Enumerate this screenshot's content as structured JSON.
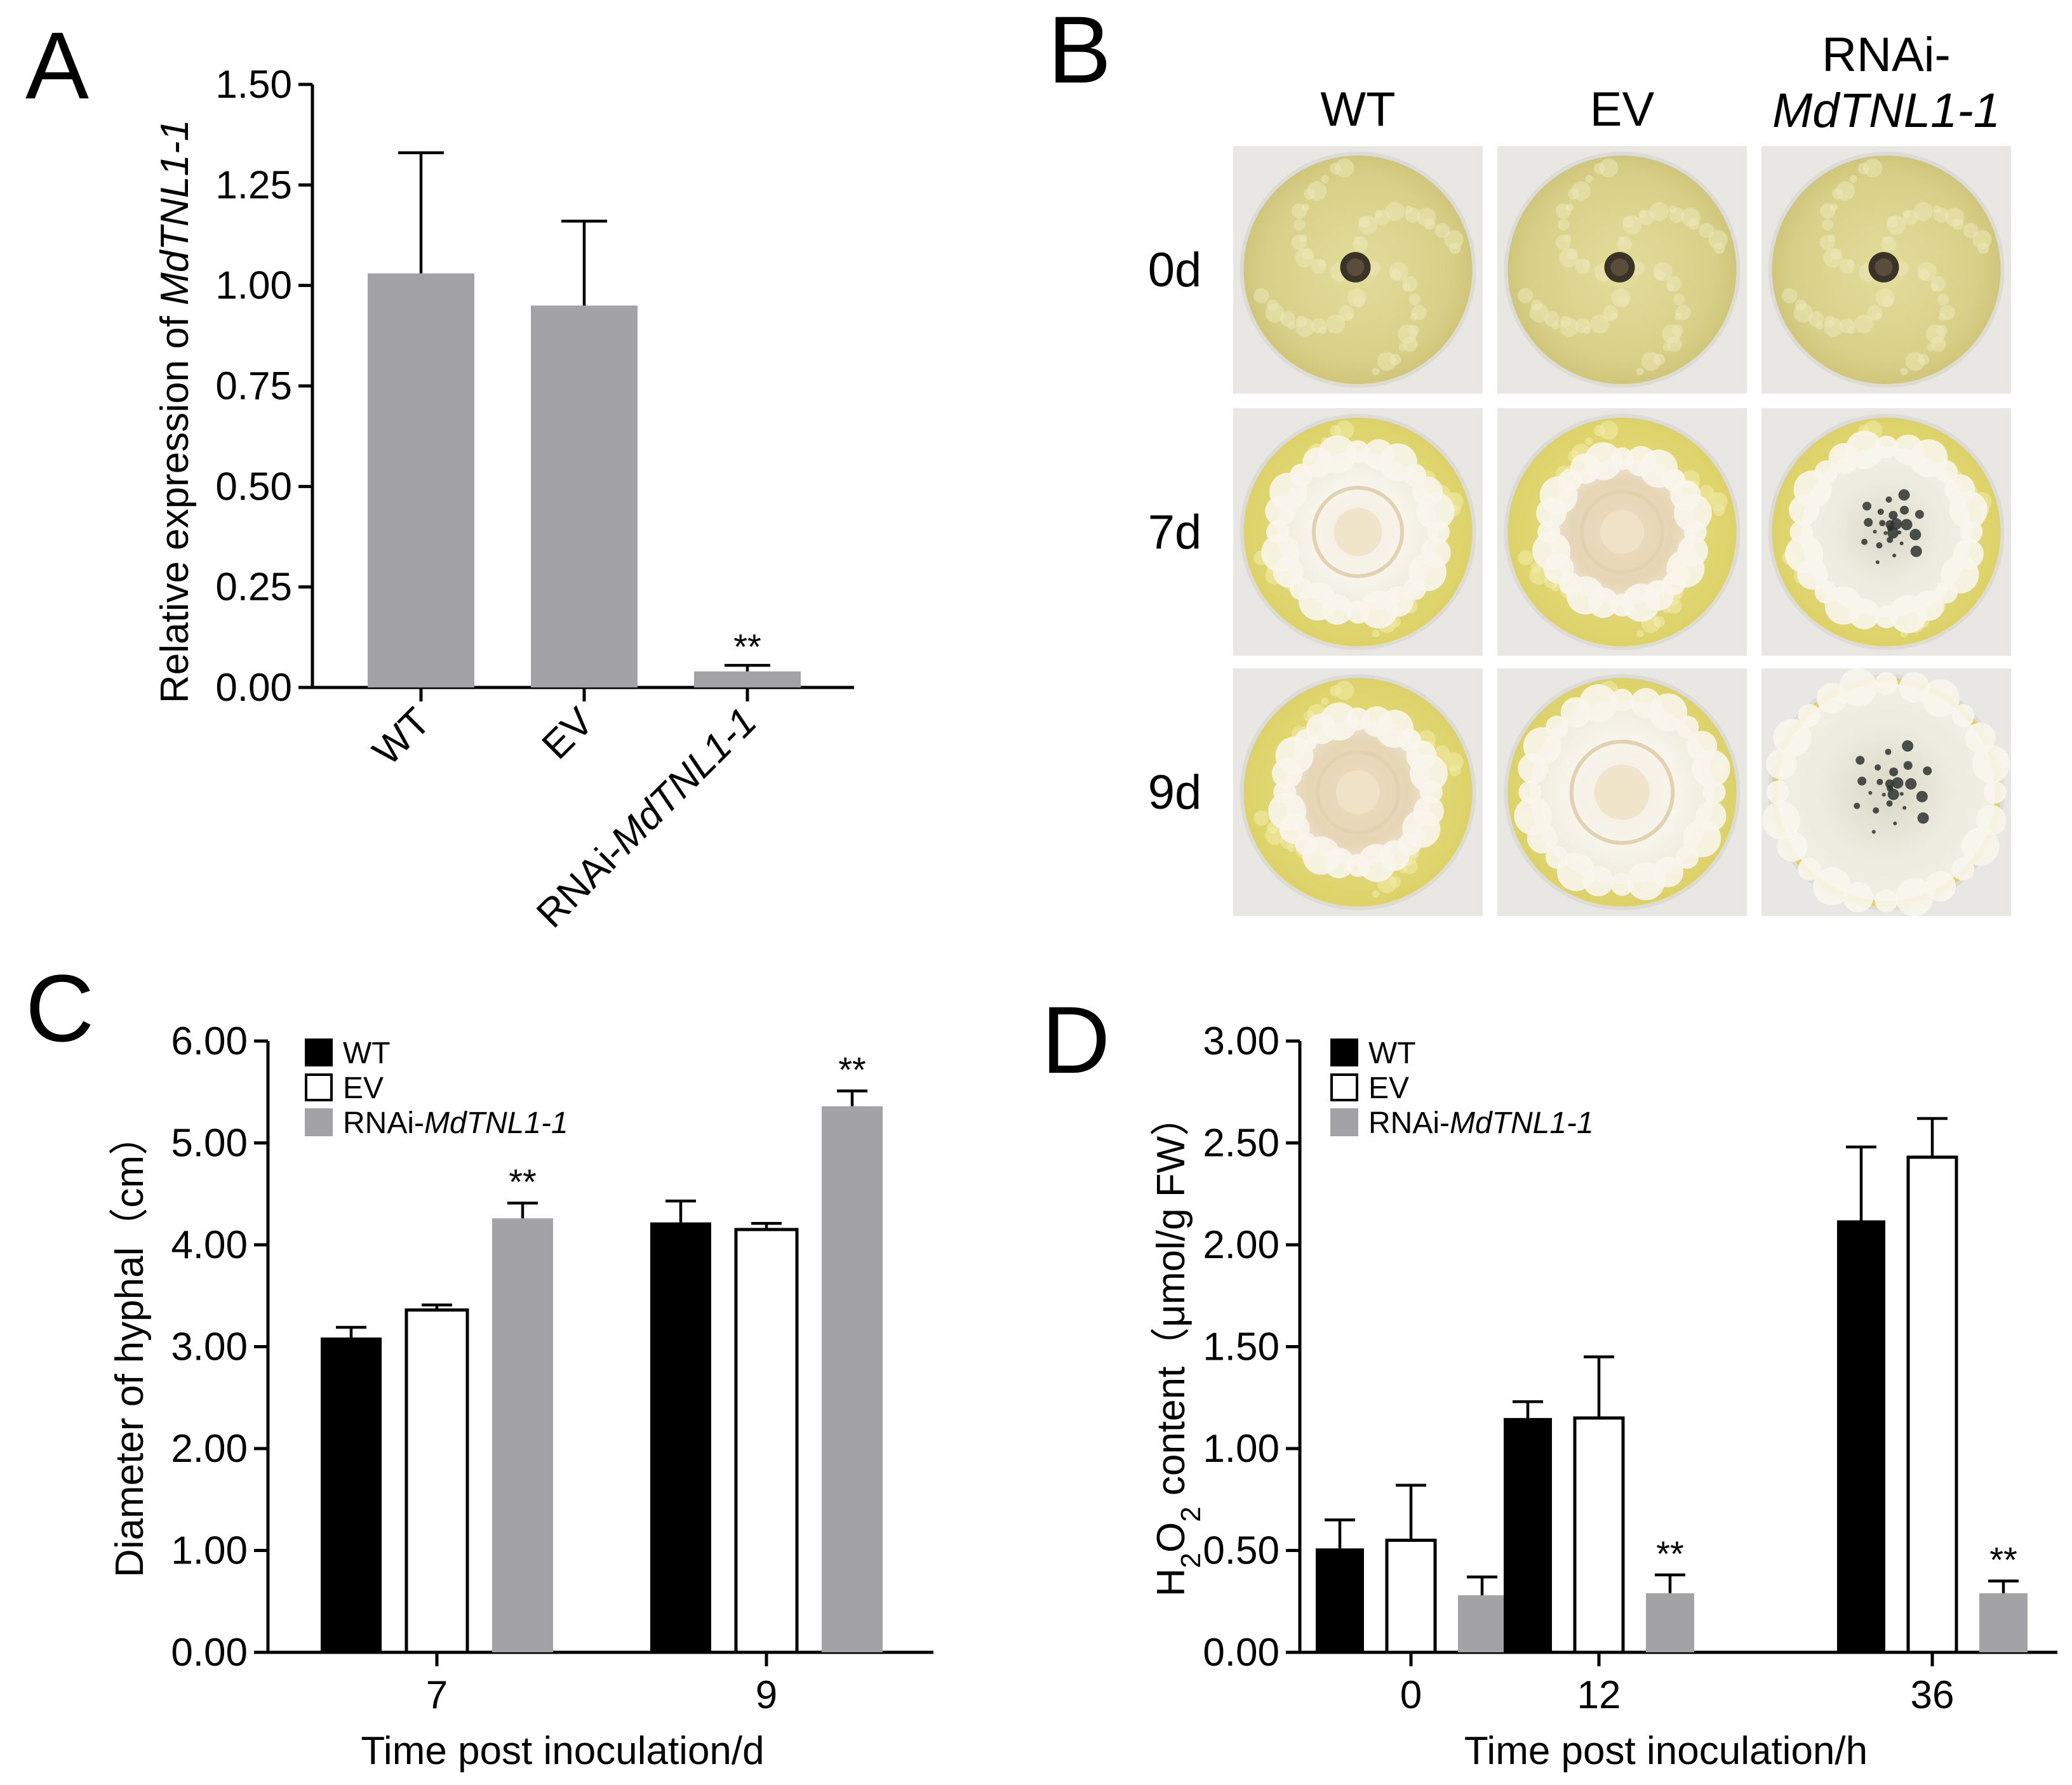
{
  "panels": {
    "a": "A",
    "b": "B",
    "c": "C",
    "d": "D"
  },
  "colors": {
    "black": "#000000",
    "white": "#ffffff",
    "gray": "#a3a3a6"
  },
  "photo_grid": {
    "columns": [
      "WT",
      "EV",
      "RNAi-MdTNL1-1"
    ],
    "column_lines": [
      [
        {
          "t": "WT",
          "i": false
        }
      ],
      [
        {
          "t": "EV",
          "i": false
        }
      ],
      [
        {
          "t": "RNAi-",
          "i": false
        },
        {
          "t": "MdTNL1-1",
          "i": true
        }
      ]
    ],
    "rows": [
      "0d",
      "7d",
      "9d"
    ]
  },
  "chart_data": [
    {
      "id": "A",
      "type": "bar",
      "title": "",
      "xlabel": "",
      "ylabel": "Relative expression of MdTNL1-1",
      "ylabel_parts": [
        {
          "t": "Relative expression of ",
          "i": false
        },
        {
          "t": "MdTNL1-1",
          "i": true
        }
      ],
      "categories": [
        "WT",
        "EV",
        "RNAi-MdTNL1-1"
      ],
      "category_parts": [
        [
          {
            "t": "WT",
            "i": false
          }
        ],
        [
          {
            "t": "EV",
            "i": false
          }
        ],
        [
          {
            "t": "RNAi-",
            "i": false
          },
          {
            "t": "MdTNL1-1",
            "i": true
          }
        ]
      ],
      "values": [
        1.03,
        0.95,
        0.04
      ],
      "errors": [
        0.3,
        0.21,
        0.015
      ],
      "significance": [
        "",
        "",
        "**"
      ],
      "ylim": [
        0,
        1.5
      ],
      "yticks": [
        "0.00",
        "0.25",
        "0.50",
        "0.75",
        "1.00",
        "1.25",
        "1.50"
      ],
      "legend": false
    },
    {
      "id": "C",
      "type": "bar",
      "title": "",
      "xlabel": "Time post inoculation/d",
      "ylabel": "Diameter of hyphal（cm）",
      "categories": [
        "7",
        "9"
      ],
      "series": [
        {
          "name": "WT",
          "values": [
            3.09,
            4.22
          ],
          "errors": [
            0.1,
            0.21
          ],
          "significance": [
            "",
            ""
          ]
        },
        {
          "name": "EV",
          "values": [
            3.36,
            4.15
          ],
          "errors": [
            0.05,
            0.06
          ],
          "significance": [
            "",
            ""
          ]
        },
        {
          "name": "RNAi-MdTNL1-1",
          "values": [
            4.26,
            5.36
          ],
          "errors": [
            0.15,
            0.15
          ],
          "significance": [
            "**",
            "**"
          ]
        }
      ],
      "legend_parts": [
        [
          {
            "t": "WT",
            "i": false
          }
        ],
        [
          {
            "t": "EV",
            "i": false
          }
        ],
        [
          {
            "t": "RNAi-",
            "i": false
          },
          {
            "t": "MdTNL1-1",
            "i": true
          }
        ]
      ],
      "ylim": [
        0,
        6
      ],
      "yticks": [
        "0.00",
        "1.00",
        "2.00",
        "3.00",
        "4.00",
        "5.00",
        "6.00"
      ],
      "legend": "top-left"
    },
    {
      "id": "D",
      "type": "bar",
      "title": "",
      "xlabel": "Time post inoculation/h",
      "ylabel": "H2O2 content（μmol/g FW）",
      "categories": [
        "0",
        "12",
        "36"
      ],
      "series": [
        {
          "name": "WT",
          "values": [
            0.51,
            1.15,
            2.12
          ],
          "errors": [
            0.14,
            0.08,
            0.36
          ],
          "significance": [
            "",
            "",
            ""
          ]
        },
        {
          "name": "EV",
          "values": [
            0.55,
            1.15,
            2.43
          ],
          "errors": [
            0.27,
            0.3,
            0.19
          ],
          "significance": [
            "",
            "",
            ""
          ]
        },
        {
          "name": "RNAi-MdTNL1-1",
          "values": [
            0.28,
            0.29,
            0.29
          ],
          "errors": [
            0.09,
            0.09,
            0.06
          ],
          "significance": [
            "",
            "**",
            "**"
          ]
        }
      ],
      "legend_parts": [
        [
          {
            "t": "WT",
            "i": false
          }
        ],
        [
          {
            "t": "EV",
            "i": false
          }
        ],
        [
          {
            "t": "RNAi-",
            "i": false
          },
          {
            "t": "MdTNL1-1",
            "i": true
          }
        ]
      ],
      "ylim": [
        0,
        3
      ],
      "yticks": [
        "0.00",
        "0.50",
        "1.00",
        "1.50",
        "2.00",
        "2.50",
        "3.00"
      ],
      "legend": "top-left"
    }
  ]
}
